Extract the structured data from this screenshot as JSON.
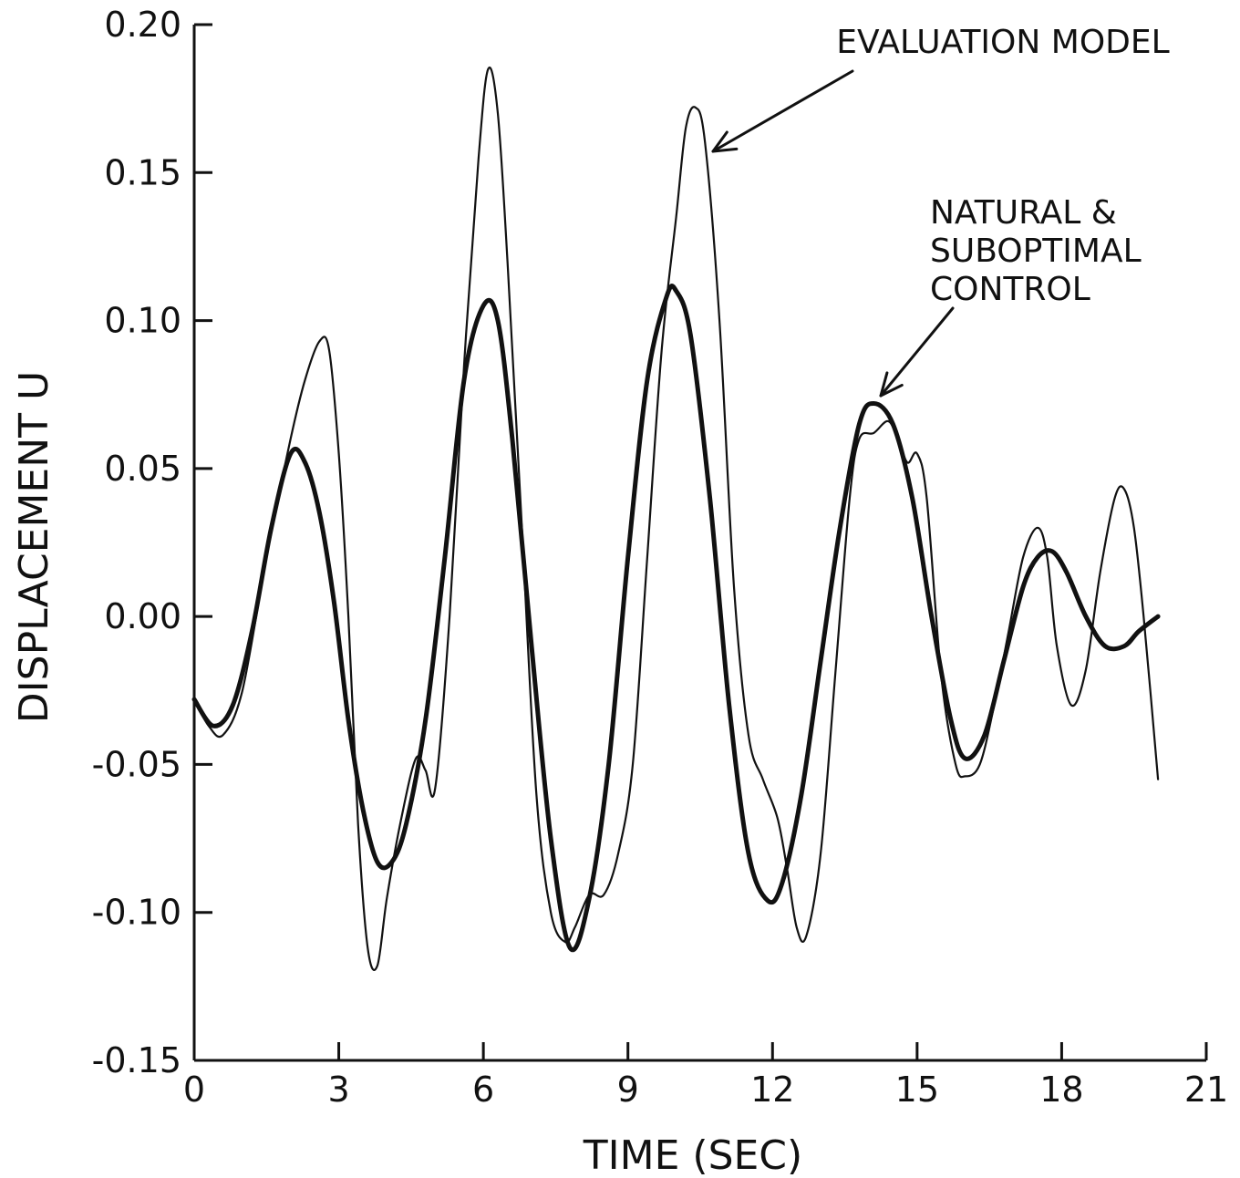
{
  "chart_data": {
    "type": "line",
    "xlabel": "TIME (SEC)",
    "ylabel": "DISPLACEMENT U",
    "xlim": [
      0,
      21
    ],
    "ylim": [
      -0.15,
      0.2
    ],
    "xticks": [
      0,
      3,
      6,
      9,
      12,
      15,
      18,
      21
    ],
    "yticks": [
      -0.15,
      -0.1,
      -0.05,
      0.0,
      0.05,
      0.1,
      0.15,
      0.2
    ],
    "xtick_labels": [
      "0",
      "3",
      "6",
      "9",
      "12",
      "15",
      "18",
      "21"
    ],
    "ytick_labels": [
      "-0.15",
      "-0.10",
      "-0.05",
      "0.00",
      "0.05",
      "0.10",
      "0.15",
      "0.20"
    ],
    "grid": false,
    "annotations": [
      {
        "text": "EVALUATION MODEL",
        "target": "thin-series"
      },
      {
        "text": [
          "NATURAL &",
          "SUBOPTIMAL",
          "CONTROL"
        ],
        "target": "thick-series"
      }
    ],
    "series": [
      {
        "style": "thin",
        "x": [
          0,
          0.3,
          0.6,
          1.0,
          1.5,
          2.0,
          2.3,
          2.6,
          2.8,
          3.0,
          3.2,
          3.4,
          3.6,
          3.8,
          4.0,
          4.3,
          4.6,
          4.8,
          5.0,
          5.3,
          5.6,
          5.9,
          6.1,
          6.3,
          6.5,
          6.8,
          7.1,
          7.4,
          7.7,
          7.9,
          8.2,
          8.5,
          8.8,
          9.1,
          9.4,
          9.7,
          10.0,
          10.2,
          10.4,
          10.6,
          10.9,
          11.2,
          11.5,
          11.8,
          12.1,
          12.3,
          12.5,
          12.7,
          13.0,
          13.3,
          13.6,
          13.8,
          14.1,
          14.4,
          14.6,
          14.8,
          15.0,
          15.2,
          15.5,
          15.8,
          16.0,
          16.3,
          16.6,
          16.9,
          17.2,
          17.5,
          17.7,
          17.9,
          18.2,
          18.5,
          18.8,
          19.1,
          19.3,
          19.5,
          19.7,
          20.0
        ],
        "y": [
          -0.028,
          -0.037,
          -0.04,
          -0.025,
          0.02,
          0.06,
          0.08,
          0.093,
          0.09,
          0.055,
          0.0,
          -0.07,
          -0.112,
          -0.118,
          -0.095,
          -0.068,
          -0.048,
          -0.052,
          -0.058,
          0.0,
          0.085,
          0.155,
          0.185,
          0.17,
          0.12,
          0.03,
          -0.06,
          -0.1,
          -0.11,
          -0.105,
          -0.094,
          -0.094,
          -0.08,
          -0.05,
          0.02,
          0.09,
          0.135,
          0.165,
          0.172,
          0.16,
          0.1,
          0.01,
          -0.04,
          -0.055,
          -0.068,
          -0.085,
          -0.105,
          -0.108,
          -0.08,
          -0.02,
          0.04,
          0.06,
          0.062,
          0.066,
          0.06,
          0.052,
          0.055,
          0.04,
          -0.02,
          -0.05,
          -0.054,
          -0.05,
          -0.03,
          -0.005,
          0.02,
          0.03,
          0.02,
          -0.01,
          -0.03,
          -0.018,
          0.015,
          0.04,
          0.043,
          0.03,
          0.0,
          -0.055
        ]
      },
      {
        "style": "thick",
        "x": [
          0,
          0.4,
          0.8,
          1.2,
          1.6,
          2.0,
          2.3,
          2.6,
          2.9,
          3.2,
          3.5,
          3.8,
          4.1,
          4.4,
          4.8,
          5.2,
          5.6,
          6.0,
          6.3,
          6.6,
          7.0,
          7.4,
          7.8,
          8.2,
          8.6,
          9.0,
          9.4,
          9.8,
          10.0,
          10.3,
          10.7,
          11.1,
          11.5,
          11.9,
          12.2,
          12.6,
          13.0,
          13.4,
          13.8,
          14.1,
          14.5,
          14.9,
          15.3,
          15.7,
          16.0,
          16.4,
          16.8,
          17.2,
          17.5,
          17.8,
          18.1,
          18.5,
          18.9,
          19.3,
          19.6,
          20.0
        ],
        "y": [
          -0.028,
          -0.037,
          -0.03,
          -0.005,
          0.03,
          0.055,
          0.052,
          0.035,
          0.005,
          -0.035,
          -0.065,
          -0.083,
          -0.083,
          -0.07,
          -0.035,
          0.02,
          0.08,
          0.105,
          0.1,
          0.06,
          -0.01,
          -0.075,
          -0.112,
          -0.095,
          -0.05,
          0.02,
          0.08,
          0.108,
          0.11,
          0.095,
          0.04,
          -0.03,
          -0.08,
          -0.096,
          -0.09,
          -0.06,
          -0.015,
          0.03,
          0.065,
          0.072,
          0.065,
          0.04,
          0.0,
          -0.035,
          -0.048,
          -0.04,
          -0.015,
          0.01,
          0.02,
          0.022,
          0.015,
          0.0,
          -0.01,
          -0.01,
          -0.005,
          0.0
        ]
      }
    ]
  }
}
